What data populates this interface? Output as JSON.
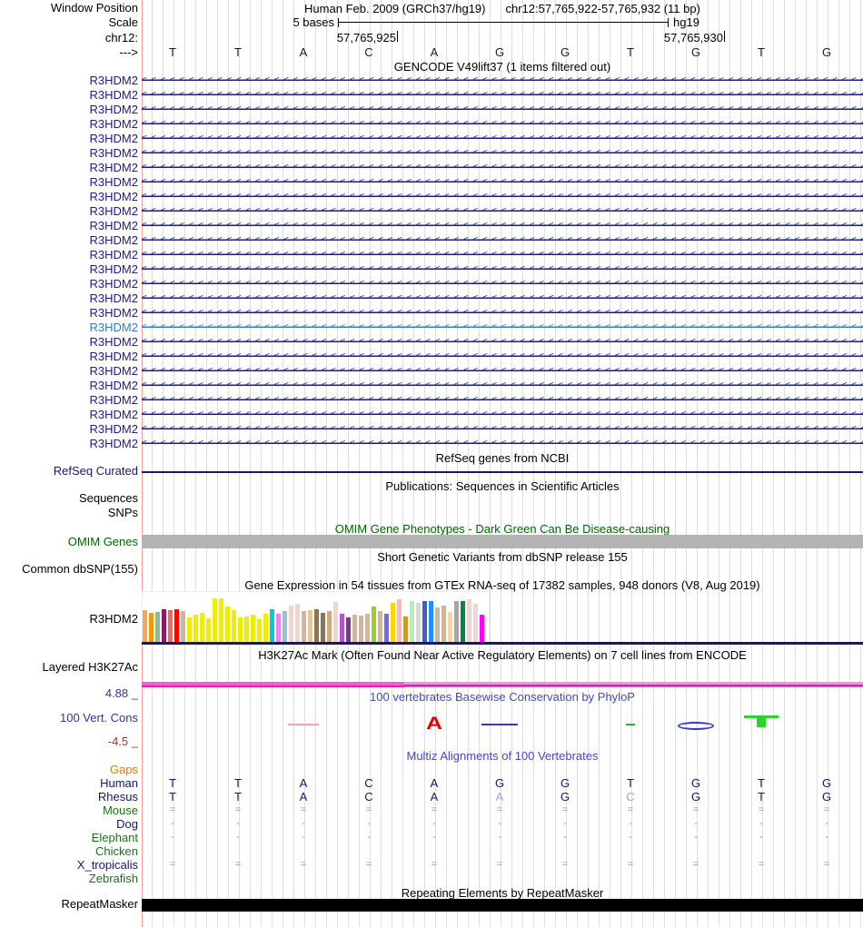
{
  "header": {
    "window_position_label": "Window Position",
    "assembly_line": "Human Feb. 2009 (GRCh37/hg19)",
    "position_line": "chr12:57,765,922-57,765,932 (11 bp)",
    "scale_label": "Scale",
    "scale_value": "5 bases",
    "assembly": "hg19",
    "chrom_label": "chr12:",
    "coordinate_labels": [
      "57,765,925",
      "57,765,930"
    ],
    "strand_label": "--->",
    "bases": [
      "T",
      "T",
      "A",
      "C",
      "A",
      "G",
      "G",
      "T",
      "G",
      "T",
      "G"
    ]
  },
  "gencode": {
    "title": "GENCODE V49lift37 (1 items filtered out)",
    "gene_label": "R3HDM2",
    "row_count": 26,
    "highlighted_row": 17
  },
  "refseq": {
    "title": "RefSeq genes from NCBI",
    "label": "RefSeq Curated"
  },
  "publications": {
    "title": "Publications: Sequences in Scientific Articles",
    "labels": [
      "Sequences",
      "SNPs"
    ]
  },
  "omim": {
    "title": "OMIM Gene Phenotypes - Dark Green Can Be Disease-causing",
    "label": "OMIM Genes"
  },
  "dbsnp": {
    "title": "Short Genetic Variants from dbSNP release 155",
    "label": "Common dbSNP(155)"
  },
  "gtex": {
    "title": "Gene Expression in 54 tissues from GTEx RNA-seq of 17382 samples, 948 donors (V8, Aug 2019)",
    "label": "R3HDM2",
    "bar_colors": [
      "#FFA54F",
      "#EE9A00",
      "#8FBC8F",
      "#8B1C62",
      "#EE6A50",
      "#FF0000",
      "#CDB79E",
      "#EEEE00",
      "#EEEE00",
      "#EEEE00",
      "#EEEE00",
      "#EEEE00",
      "#EEEE00",
      "#EEEE00",
      "#EEEE00",
      "#EEEE00",
      "#EEEE00",
      "#EEEE00",
      "#EEEE00",
      "#EEEE00",
      "#00CDCD",
      "#EE82EE",
      "#9AC0CD",
      "#EED5D2",
      "#EED5D2",
      "#CDB79E",
      "#EEC591",
      "#8B7355",
      "#8B7355",
      "#CDAA7D",
      "#EED5D2",
      "#B452CD",
      "#7A378B",
      "#CDB79E",
      "#CDB79E",
      "#CDB79E",
      "#9ACD32",
      "#CDB79E",
      "#7A67EE",
      "#FFD700",
      "#FFB6C1",
      "#CD9B1D",
      "#B4EEB4",
      "#D9D9D9",
      "#3A5FCD",
      "#1E90FF",
      "#CDB79E",
      "#CDB79E",
      "#FFD39B",
      "#A6A6A6",
      "#008B45",
      "#EED5D2",
      "#EED5D2",
      "#FF00FF"
    ],
    "bar_heights": [
      0.72,
      0.65,
      0.67,
      0.73,
      0.72,
      0.73,
      0.7,
      0.55,
      0.62,
      0.66,
      0.54,
      0.97,
      0.97,
      0.8,
      0.72,
      0.55,
      0.57,
      0.62,
      0.51,
      0.64,
      0.74,
      0.64,
      0.7,
      0.82,
      0.86,
      0.7,
      0.72,
      0.74,
      0.66,
      0.7,
      0.9,
      0.64,
      0.55,
      0.62,
      0.6,
      0.64,
      0.8,
      0.7,
      0.64,
      0.88,
      0.96,
      0.58,
      0.92,
      0.88,
      0.92,
      0.92,
      0.78,
      0.82,
      0.68,
      0.92,
      0.92,
      0.95,
      0.86,
      0.62
    ]
  },
  "h3k27ac": {
    "title": "H3K27Ac Mark (Often Found Near Active Regulatory Elements) on 7 cell lines from ENCODE",
    "label": "Layered H3K27Ac"
  },
  "phylop": {
    "title": "100 vertebrates Basewise Conservation by PhyloP",
    "label": "100 Vert. Cons",
    "max_value": "4.88 _",
    "min_value": "-4.5 _",
    "glyphs": [
      {
        "base_index": 2,
        "shape": "hline",
        "color": "#f2a6a6",
        "width": 34
      },
      {
        "base_index": 4,
        "shape": "letter",
        "char": "A",
        "color": "#e60000"
      },
      {
        "base_index": 5,
        "shape": "hline",
        "color": "#3238cc",
        "width": 40
      },
      {
        "base_index": 7,
        "shape": "hline",
        "color": "#2eb82e",
        "width": 10
      },
      {
        "base_index": 8,
        "shape": "ellipse",
        "color": "#3238cc",
        "width": 40
      },
      {
        "base_index": 9,
        "shape": "letter",
        "char": "T",
        "color": "#2ed32e"
      }
    ]
  },
  "multiz": {
    "title": "Multiz Alignments of 100 Vertebrates",
    "rows": [
      {
        "name": "Gaps",
        "name_color": "#e07d00",
        "cells": []
      },
      {
        "name": "Human",
        "name_color": "#14146e",
        "cells": [
          "T",
          "T",
          "A",
          "C",
          "A",
          "G",
          "G",
          "T",
          "G",
          "T",
          "G"
        ],
        "pale_indices": []
      },
      {
        "name": "Rhesus",
        "name_color": "#14146e",
        "cells": [
          "T",
          "T",
          "A",
          "C",
          "A",
          "A",
          "G",
          "C",
          "G",
          "T",
          "G"
        ],
        "pale_indices": [
          5,
          7
        ]
      },
      {
        "name": "Mouse",
        "name_color": "#1c6e1c",
        "cells": [
          "=",
          "=",
          "=",
          "=",
          "=",
          "=",
          "=",
          "=",
          "=",
          "=",
          "="
        ],
        "pale_indices": []
      },
      {
        "name": "Dog",
        "name_color": "#14146e",
        "cells": [
          "-",
          "-",
          "-",
          "-",
          "-",
          "-",
          "-",
          "-",
          "-",
          "-",
          "-"
        ],
        "pale_indices": []
      },
      {
        "name": "Elephant",
        "name_color": "#1c6e1c",
        "cells": [
          "-",
          "-",
          "-",
          "-",
          "-",
          "-",
          "-",
          "-",
          "-",
          "-",
          "-"
        ],
        "pale_indices": []
      },
      {
        "name": "Chicken",
        "name_color": "#1c6e1c",
        "cells": []
      },
      {
        "name": "X_tropicalis",
        "name_color": "#14146e",
        "cells": [
          "=",
          "=",
          "=",
          "=",
          "=",
          "=",
          "=",
          "=",
          "=",
          "=",
          "="
        ],
        "pale_indices": []
      },
      {
        "name": "Zebrafish",
        "name_color": "#1c6e1c",
        "cells": []
      }
    ]
  },
  "repeatmasker": {
    "title": "Repeating Elements by RepeatMasker",
    "label": "RepeatMasker"
  },
  "colors": {
    "gene_navy": "#1b1e7d",
    "gene_highlight": "#2f7cbf",
    "track_line_navy": "#15186f",
    "title_blue": "#4646c8",
    "omim_green": "#006400",
    "omim_bar_gray": "#b4b4b4",
    "phylop_max_blue": "#333399",
    "phylop_min_red": "#993333",
    "gaps_orange": "#e07d00",
    "mismatch_pale": "#9aa2da",
    "align_symbol": "#8c92cc",
    "h3k_pink": "#fb5ad0",
    "h3k_purple": "#a23fa5",
    "repeat_black": "#000000"
  }
}
